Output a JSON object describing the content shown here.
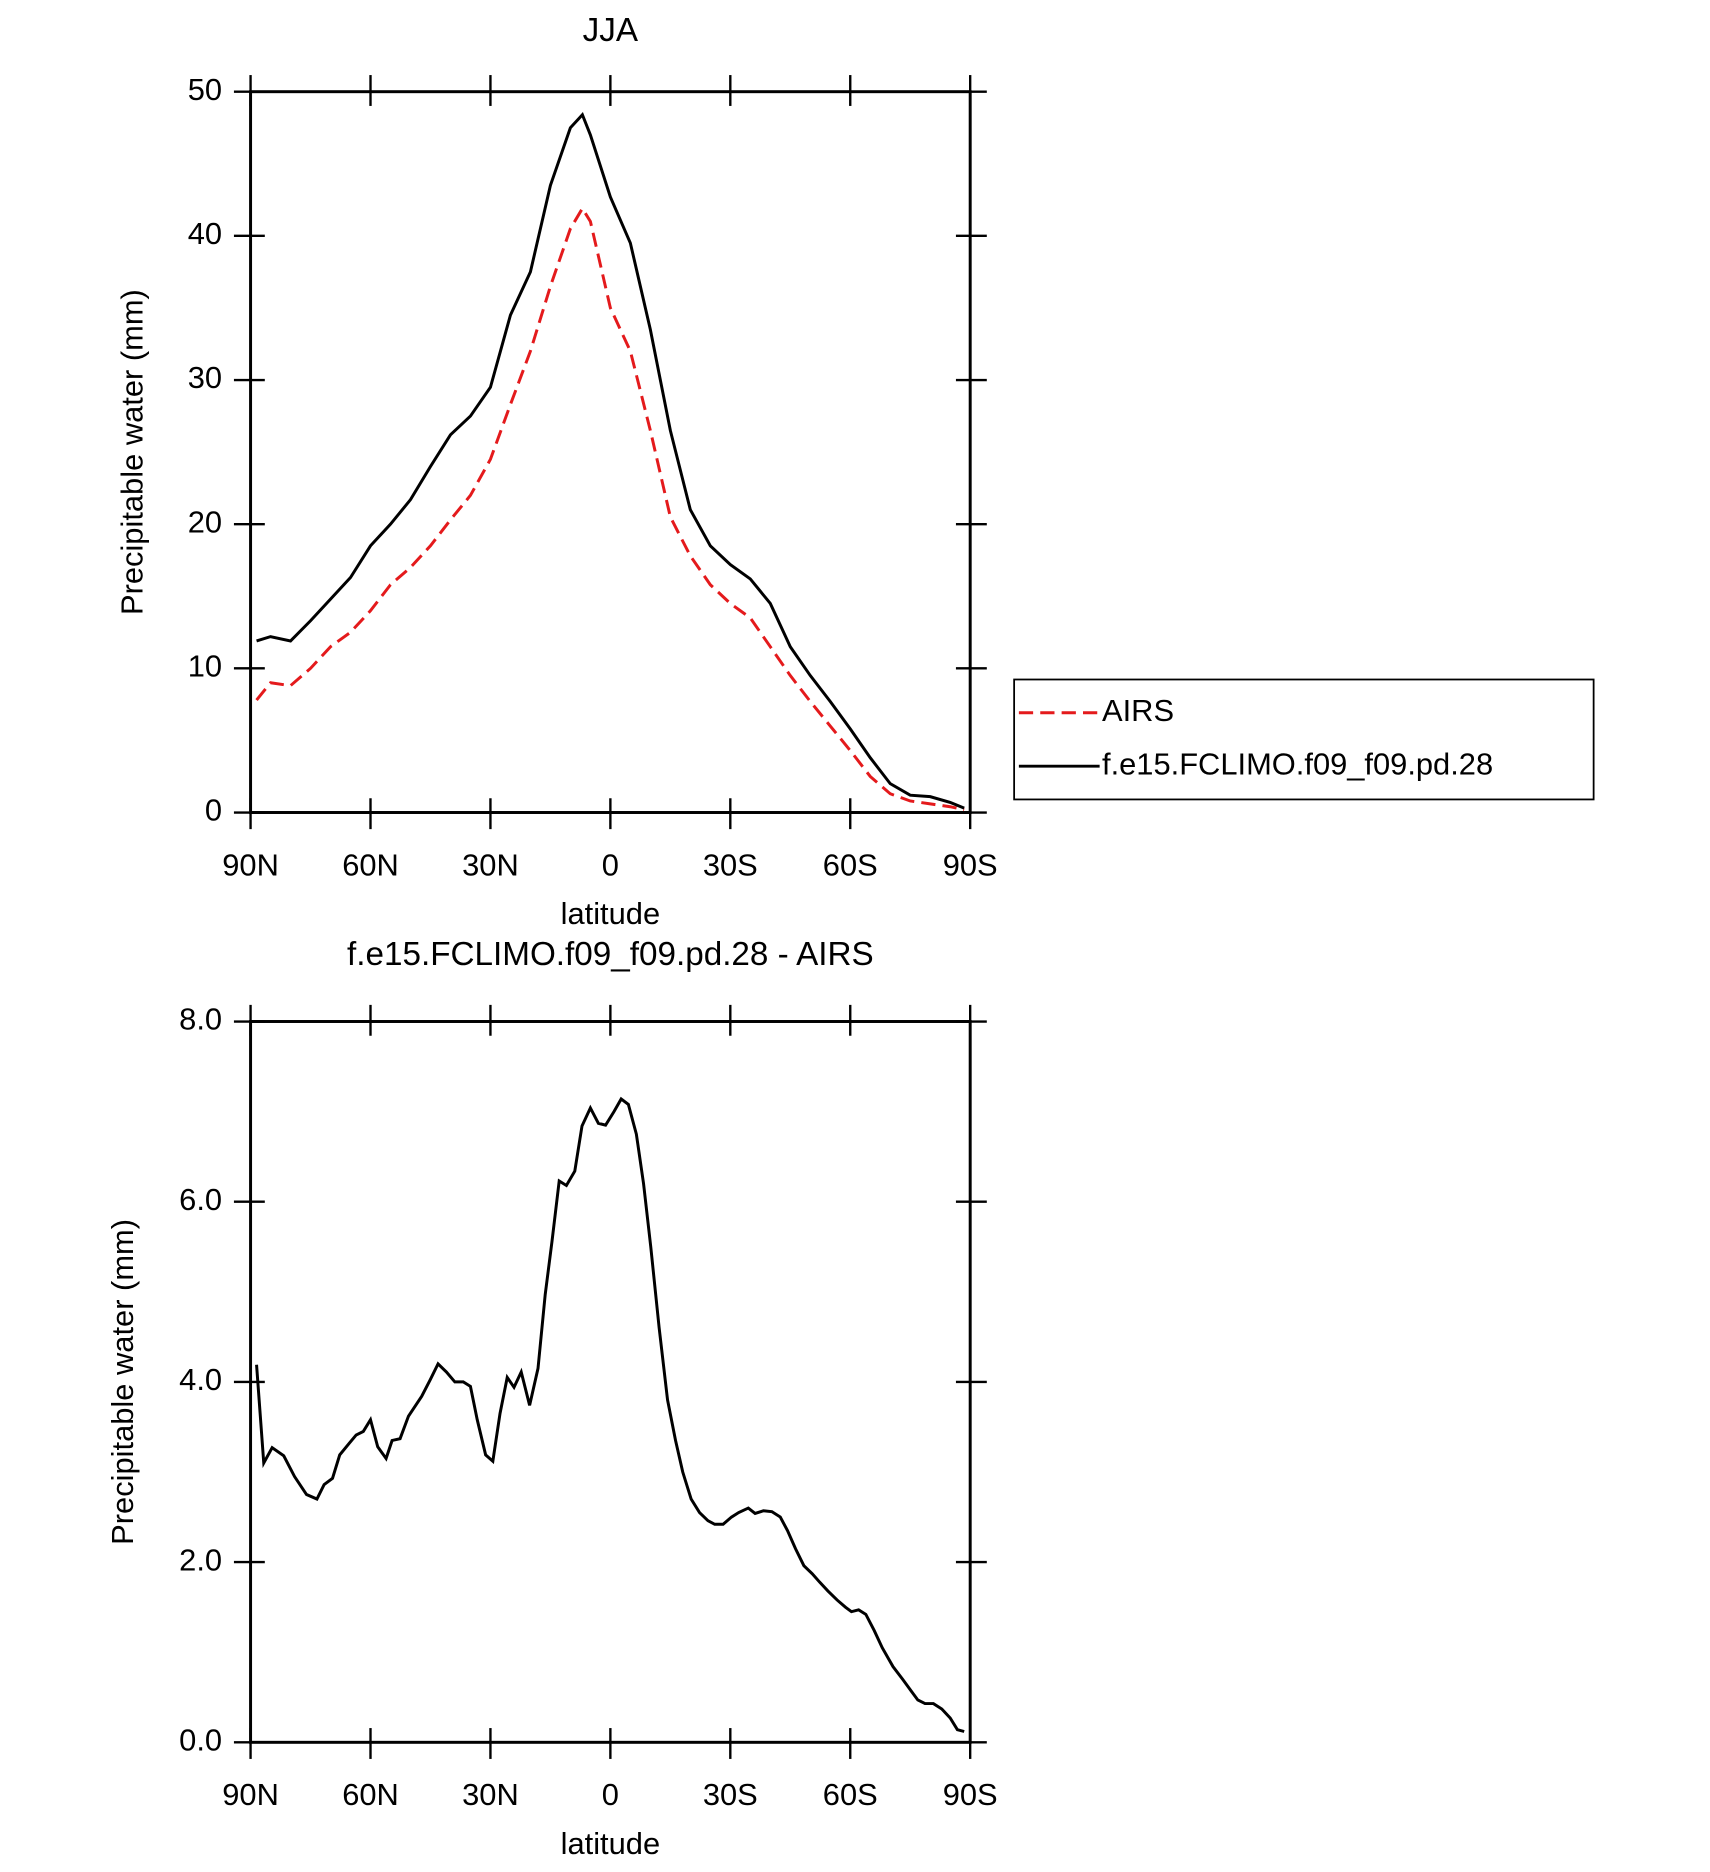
{
  "chart_data": [
    {
      "type": "line",
      "title": "JJA",
      "xlabel": "latitude",
      "ylabel": "Precipitable water (mm)",
      "x": [
        88.5,
        85,
        80,
        75,
        70,
        65,
        60,
        55,
        50,
        45,
        40,
        35,
        30,
        25,
        20,
        15,
        10,
        7,
        5,
        0,
        -5,
        -10,
        -15,
        -20,
        -25,
        -30,
        -35,
        -40,
        -45,
        -50,
        -55,
        -60,
        -65,
        -70,
        -75,
        -80,
        -85,
        -88.5
      ],
      "series": [
        {
          "name": "AIRS",
          "color": "#e41a1c",
          "dashed": true,
          "values": [
            7.8,
            9.0,
            8.8,
            10.0,
            11.5,
            12.5,
            14.0,
            15.8,
            17.0,
            18.5,
            20.3,
            22.0,
            24.5,
            28.3,
            32.0,
            36.5,
            40.5,
            41.9,
            41.0,
            35.0,
            32.0,
            26.5,
            20.5,
            17.8,
            15.8,
            14.5,
            13.5,
            11.5,
            9.5,
            7.7,
            6.0,
            4.3,
            2.5,
            1.3,
            0.8,
            0.6,
            0.4,
            0.2
          ]
        },
        {
          "name": "f.e15.FCLIMO.f09_f09.pd.28",
          "color": "#000000",
          "dashed": false,
          "values": [
            11.9,
            12.2,
            11.9,
            13.3,
            14.8,
            16.3,
            18.5,
            20.0,
            21.7,
            24.0,
            26.2,
            27.5,
            29.5,
            34.5,
            37.5,
            43.5,
            47.5,
            48.4,
            47.0,
            42.7,
            39.5,
            33.5,
            26.5,
            21.0,
            18.5,
            17.2,
            16.2,
            14.5,
            11.5,
            9.5,
            7.7,
            5.8,
            3.8,
            2.0,
            1.2,
            1.1,
            0.7,
            0.3
          ]
        }
      ],
      "xlim": [
        90,
        -90
      ],
      "xticks": [
        {
          "value": 90,
          "label": "90N"
        },
        {
          "value": 60,
          "label": "60N"
        },
        {
          "value": 30,
          "label": "30N"
        },
        0,
        {
          "value": -30,
          "label": "30S"
        },
        {
          "value": -60,
          "label": "60S"
        },
        {
          "value": -90,
          "label": "90S"
        }
      ],
      "ylim": [
        0,
        50
      ],
      "yticks": [
        0,
        10,
        20,
        30,
        40,
        50
      ],
      "legend": "right"
    },
    {
      "type": "line",
      "title": "f.e15.FCLIMO.f09_f09.pd.28 - AIRS",
      "xlabel": "latitude",
      "ylabel": "Precipitable water (mm)",
      "x": [
        88.5,
        86.7,
        84.6,
        81.7,
        79.0,
        76.0,
        73.4,
        71.6,
        69.5,
        67.7,
        65.3,
        63.6,
        61.8,
        60.0,
        58.2,
        56.1,
        54.6,
        52.6,
        50.5,
        47.2,
        45.1,
        43.1,
        41.0,
        38.9,
        36.8,
        35.0,
        33.3,
        31.2,
        29.4,
        27.6,
        25.8,
        24.1,
        22.3,
        20.2,
        18.1,
        16.3,
        14.6,
        12.8,
        11.0,
        8.9,
        7.1,
        5.0,
        3.0,
        1.2,
        -0.9,
        -2.7,
        -4.5,
        -6.5,
        -8.3,
        -10.1,
        -12.2,
        -14.3,
        -16.3,
        -18.1,
        -20.2,
        -22.3,
        -24.4,
        -26.1,
        -28.2,
        -30.3,
        -32.1,
        -34.5,
        -36.2,
        -38.3,
        -40.4,
        -42.5,
        -44.3,
        -46.3,
        -48.4,
        -50.5,
        -52.3,
        -54.4,
        -56.7,
        -58.8,
        -60.3,
        -62.1,
        -63.9,
        -66.0,
        -68.0,
        -70.7,
        -73.1,
        -75.4,
        -76.9,
        -78.7,
        -80.8,
        -82.9,
        -85.0,
        -86.8,
        -88.5
      ],
      "values": [
        4.19,
        3.1,
        3.27,
        3.18,
        2.95,
        2.75,
        2.7,
        2.86,
        2.93,
        3.19,
        3.32,
        3.41,
        3.45,
        3.58,
        3.28,
        3.15,
        3.35,
        3.37,
        3.62,
        3.84,
        4.02,
        4.2,
        4.11,
        4.0,
        4.0,
        3.95,
        3.58,
        3.19,
        3.12,
        3.65,
        4.05,
        3.94,
        4.11,
        3.74,
        4.15,
        4.97,
        5.56,
        6.23,
        6.18,
        6.34,
        6.84,
        7.04,
        6.87,
        6.85,
        7.0,
        7.14,
        7.08,
        6.75,
        6.2,
        5.5,
        4.6,
        3.8,
        3.35,
        3.0,
        2.7,
        2.55,
        2.46,
        2.42,
        2.42,
        2.5,
        2.55,
        2.6,
        2.54,
        2.57,
        2.56,
        2.5,
        2.35,
        2.15,
        1.96,
        1.87,
        1.78,
        1.68,
        1.58,
        1.5,
        1.45,
        1.47,
        1.42,
        1.24,
        1.05,
        0.84,
        0.7,
        0.56,
        0.47,
        0.43,
        0.43,
        0.37,
        0.27,
        0.14,
        0.12
      ],
      "color": "#000000",
      "xlim": [
        90,
        -90
      ],
      "xticks": [
        {
          "value": 90,
          "label": "90N"
        },
        {
          "value": 60,
          "label": "60N"
        },
        {
          "value": 30,
          "label": "30N"
        },
        0,
        {
          "value": -30,
          "label": "30S"
        },
        {
          "value": -60,
          "label": "60S"
        },
        {
          "value": -90,
          "label": "90S"
        }
      ],
      "ylim": [
        0,
        8
      ],
      "yticks": [
        {
          "value": 0,
          "label": "0.0"
        },
        {
          "value": 2,
          "label": "2.0"
        },
        {
          "value": 4,
          "label": "4.0"
        },
        {
          "value": 6,
          "label": "6.0"
        },
        {
          "value": 8,
          "label": "8.0"
        }
      ]
    }
  ]
}
